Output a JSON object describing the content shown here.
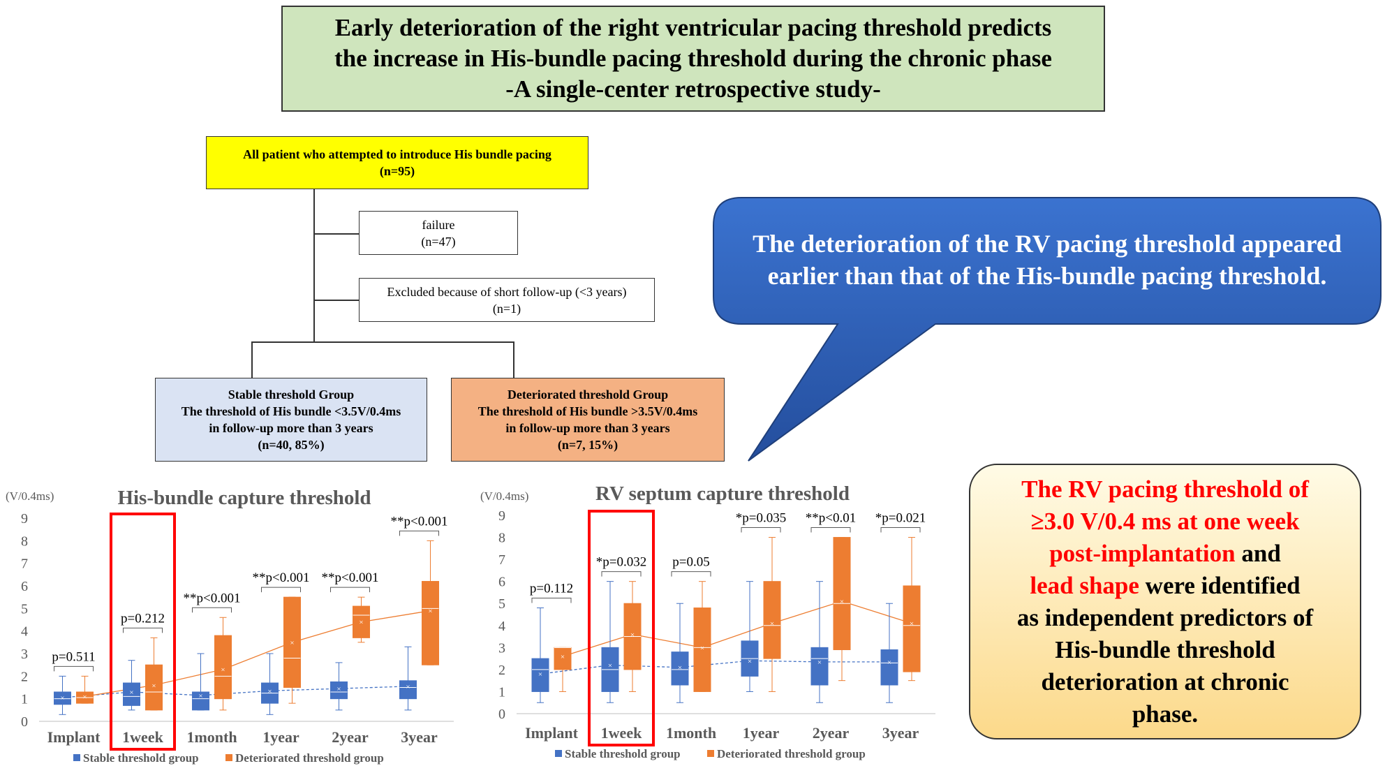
{
  "title": {
    "lines": [
      "Early deterioration of the right ventricular pacing threshold predicts",
      "the increase in His-bundle pacing threshold during the chronic phase",
      "-A single-center retrospective study-"
    ]
  },
  "flowchart": {
    "all": {
      "line1": "All patient who attempted to introduce His bundle pacing",
      "line2": "(n=95)"
    },
    "failure": {
      "line1": "failure",
      "line2": "(n=47)"
    },
    "excluded": {
      "line1": "Excluded because of short follow-up (<3 years)",
      "line2": "(n=1)"
    },
    "stable": {
      "line1": "Stable threshold  Group",
      "line2": "The threshold of His bundle <3.5V/0.4ms",
      "line3": "in follow-up more than 3 years",
      "line4": "(n=40, 85%)"
    },
    "deteriorated": {
      "line1": "Deteriorated threshold Group",
      "line2": "The threshold of His bundle >3.5V/0.4ms",
      "line3": "in follow-up more than 3 years",
      "line4": "(n=7, 15%)"
    }
  },
  "callout": {
    "line1": "The deterioration of the RV pacing threshold appeared",
    "line2": "earlier than that of the His-bundle pacing threshold."
  },
  "conclusion": {
    "l1": "The RV pacing threshold of",
    "l2": "≥3.0 V/0.4 ms at one week",
    "l3a": "post-implantation",
    "l3b": " and",
    "l4a": "lead shape",
    "l4b": " were identified",
    "l5": "as independent predictors of",
    "l6": "His-bundle threshold",
    "l7": "deterioration at chronic",
    "l8": "phase."
  },
  "colors": {
    "stable": "#4472c4",
    "deteriorated": "#ed7d31",
    "highlight": "#ff0000",
    "callout": "#2f5fba"
  },
  "chart_data": [
    {
      "type": "box",
      "title": "His-bundle capture threshold",
      "ylabel": "(V/0.4ms)",
      "ylim": [
        0,
        9
      ],
      "yticks": [
        "0",
        "1",
        "2",
        "3",
        "4",
        "5",
        "6",
        "7",
        "8",
        "9"
      ],
      "categories": [
        "Implant",
        "1week",
        "1month",
        "1year",
        "2year",
        "3year"
      ],
      "highlighted_category": "1week",
      "p_values": [
        "p=0.511",
        "p=0.212",
        "**p<0.001",
        "**p<0.001",
        "**p<0.001",
        "**p<0.001"
      ],
      "legend": [
        "Stable threshold group",
        "Deteriorated threshold group"
      ],
      "series": [
        {
          "name": "Stable threshold group",
          "mean": [
            1.05,
            1.3,
            1.15,
            1.35,
            1.45,
            1.55
          ],
          "boxes": [
            {
              "wl": 0.3,
              "q1": 0.75,
              "med": 1.0,
              "q3": 1.3,
              "wh": 2.0
            },
            {
              "wl": 0.5,
              "q1": 0.7,
              "med": 1.1,
              "q3": 1.7,
              "wh": 2.7
            },
            {
              "wl": 0.5,
              "q1": 0.5,
              "med": 1.0,
              "q3": 1.3,
              "wh": 3.0
            },
            {
              "wl": 0.3,
              "q1": 0.8,
              "med": 1.25,
              "q3": 1.7,
              "wh": 3.0
            },
            {
              "wl": 0.5,
              "q1": 1.0,
              "med": 1.3,
              "q3": 1.75,
              "wh": 2.6
            },
            {
              "wl": 0.5,
              "q1": 1.0,
              "med": 1.5,
              "q3": 1.8,
              "wh": 3.3
            }
          ]
        },
        {
          "name": "Deteriorated threshold group",
          "mean": [
            1.1,
            1.6,
            2.3,
            3.5,
            4.4,
            4.9
          ],
          "boxes": [
            {
              "wl": 0.8,
              "q1": 0.8,
              "med": 1.05,
              "q3": 1.3,
              "wh": 2.0
            },
            {
              "wl": 0.5,
              "q1": 0.5,
              "med": 1.3,
              "q3": 2.5,
              "wh": 3.7
            },
            {
              "wl": 0.5,
              "q1": 1.0,
              "med": 2.0,
              "q3": 3.8,
              "wh": 4.6
            },
            {
              "wl": 0.8,
              "q1": 1.5,
              "med": 2.8,
              "q3": 5.5,
              "wh": 5.5
            },
            {
              "wl": 3.5,
              "q1": 3.7,
              "med": 4.7,
              "q3": 5.1,
              "wh": 5.5
            },
            {
              "wl": 2.5,
              "q1": 2.5,
              "med": 5.0,
              "q3": 6.2,
              "wh": 8.0
            }
          ]
        }
      ]
    },
    {
      "type": "box",
      "title": "RV septum capture threshold",
      "ylabel": "(V/0.4ms)",
      "ylim": [
        0,
        9
      ],
      "yticks": [
        "0",
        "1",
        "2",
        "3",
        "4",
        "5",
        "6",
        "7",
        "8",
        "9"
      ],
      "categories": [
        "Implant",
        "1week",
        "1month",
        "1year",
        "2year",
        "3year"
      ],
      "highlighted_category": "1week",
      "p_values": [
        "p=0.112",
        "*p=0.032",
        "p=0.05",
        "*p=0.035",
        "**p<0.01",
        "*p=0.021"
      ],
      "legend": [
        "Stable threshold group",
        "Deteriorated threshold group"
      ],
      "series": [
        {
          "name": "Stable threshold group",
          "mean": [
            1.8,
            2.2,
            2.1,
            2.4,
            2.35,
            2.35
          ],
          "boxes": [
            {
              "wl": 0.5,
              "q1": 1.0,
              "med": 2.0,
              "q3": 2.5,
              "wh": 4.8
            },
            {
              "wl": 0.5,
              "q1": 1.0,
              "med": 2.0,
              "q3": 3.0,
              "wh": 6.0
            },
            {
              "wl": 0.5,
              "q1": 1.3,
              "med": 2.0,
              "q3": 2.8,
              "wh": 5.0
            },
            {
              "wl": 1.0,
              "q1": 1.7,
              "med": 2.5,
              "q3": 3.3,
              "wh": 6.0
            },
            {
              "wl": 0.5,
              "q1": 1.3,
              "med": 2.5,
              "q3": 3.0,
              "wh": 6.0
            },
            {
              "wl": 0.5,
              "q1": 1.3,
              "med": 2.3,
              "q3": 2.9,
              "wh": 5.0
            }
          ]
        },
        {
          "name": "Deteriorated threshold group",
          "mean": [
            2.6,
            3.6,
            3.0,
            4.1,
            5.1,
            4.1
          ],
          "boxes": [
            {
              "wl": 1.0,
              "q1": 2.0,
              "med": 3.0,
              "q3": 3.0,
              "wh": 3.0
            },
            {
              "wl": 1.0,
              "q1": 2.0,
              "med": 3.5,
              "q3": 5.0,
              "wh": 6.0
            },
            {
              "wl": 1.0,
              "q1": 1.0,
              "med": 3.0,
              "q3": 4.8,
              "wh": 6.0
            },
            {
              "wl": 1.0,
              "q1": 2.5,
              "med": 4.0,
              "q3": 6.0,
              "wh": 8.0
            },
            {
              "wl": 1.5,
              "q1": 2.9,
              "med": 5.0,
              "q3": 8.0,
              "wh": 8.0
            },
            {
              "wl": 1.5,
              "q1": 1.9,
              "med": 4.0,
              "q3": 5.8,
              "wh": 8.0
            }
          ]
        }
      ]
    }
  ]
}
